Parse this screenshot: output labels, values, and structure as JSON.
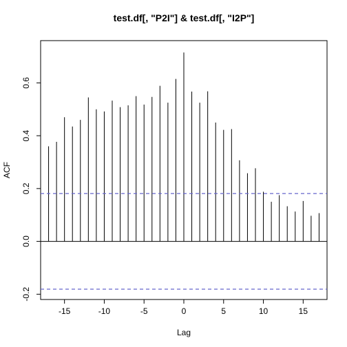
{
  "chart_data": {
    "type": "bar",
    "title": "test.df[, \"P2I\"] & test.df[, \"I2P\"]",
    "xlabel": "Lag",
    "ylabel": "ACF",
    "xlim": [
      -18,
      18
    ],
    "ylim": [
      -0.22,
      0.76
    ],
    "x_ticks": [
      -15,
      -10,
      -5,
      0,
      5,
      10,
      15
    ],
    "x_tick_labels": [
      "-15",
      "-10",
      "-5",
      "0",
      "5",
      "10",
      "15"
    ],
    "y_ticks": [
      -0.2,
      0.0,
      0.2,
      0.4,
      0.6
    ],
    "y_tick_labels": [
      "-0.2",
      "0.0",
      "0.2",
      "0.4",
      "0.6"
    ],
    "confidence_bound": 0.181,
    "confidence_color": "#6666cc",
    "bar_color": "#000000",
    "grid": false,
    "lags": [
      -17,
      -16,
      -15,
      -14,
      -13,
      -12,
      -11,
      -10,
      -9,
      -8,
      -7,
      -6,
      -5,
      -4,
      -3,
      -2,
      -1,
      0,
      1,
      2,
      3,
      4,
      5,
      6,
      7,
      8,
      9,
      10,
      11,
      12,
      13,
      14,
      15,
      16,
      17
    ],
    "values": [
      0.36,
      0.377,
      0.47,
      0.435,
      0.46,
      0.545,
      0.5,
      0.492,
      0.533,
      0.508,
      0.515,
      0.55,
      0.518,
      0.547,
      0.589,
      0.525,
      0.615,
      0.715,
      0.567,
      0.525,
      0.568,
      0.45,
      0.422,
      0.425,
      0.307,
      0.258,
      0.277,
      0.188,
      0.15,
      0.175,
      0.133,
      0.113,
      0.153,
      0.097,
      0.107
    ]
  }
}
